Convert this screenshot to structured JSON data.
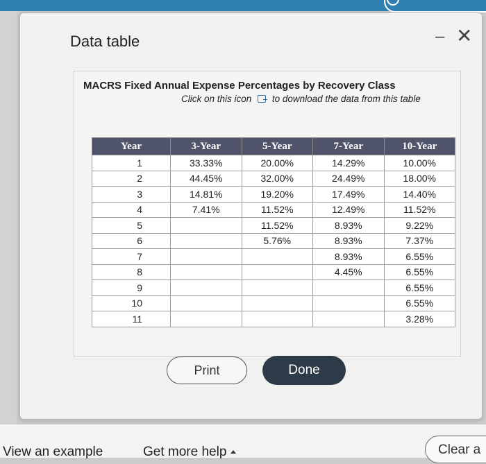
{
  "dialog": {
    "title": "Data table",
    "minimize_glyph": "–",
    "close_glyph": "✕"
  },
  "table_block": {
    "caption": "MACRS Fixed Annual Expense Percentages by Recovery Class",
    "subcaption_before": "Click on this icon",
    "subcaption_after": "to download the data from this table",
    "download_icon": "download-icon",
    "headers": [
      "Year",
      "3-Year",
      "5-Year",
      "7-Year",
      "10-Year"
    ],
    "rows": [
      [
        "1",
        "33.33%",
        "20.00%",
        "14.29%",
        "10.00%"
      ],
      [
        "2",
        "44.45%",
        "32.00%",
        "24.49%",
        "18.00%"
      ],
      [
        "3",
        "14.81%",
        "19.20%",
        "17.49%",
        "14.40%"
      ],
      [
        "4",
        "7.41%",
        "11.52%",
        "12.49%",
        "11.52%"
      ],
      [
        "5",
        "",
        "11.52%",
        "8.93%",
        "9.22%"
      ],
      [
        "6",
        "",
        "5.76%",
        "8.93%",
        "7.37%"
      ],
      [
        "7",
        "",
        "",
        "8.93%",
        "6.55%"
      ],
      [
        "8",
        "",
        "",
        "4.45%",
        "6.55%"
      ],
      [
        "9",
        "",
        "",
        "",
        "6.55%"
      ],
      [
        "10",
        "",
        "",
        "",
        "6.55%"
      ],
      [
        "11",
        "",
        "",
        "",
        "3.28%"
      ]
    ]
  },
  "buttons": {
    "print_label": "Print",
    "done_label": "Done"
  },
  "footer": {
    "view_example": "View an example",
    "get_help": "Get more help",
    "clear_label": "Clear a"
  },
  "colors": {
    "header_bg": "#4f546a",
    "done_bg": "#2d3a48",
    "top_bar": "#2f7fb1"
  }
}
